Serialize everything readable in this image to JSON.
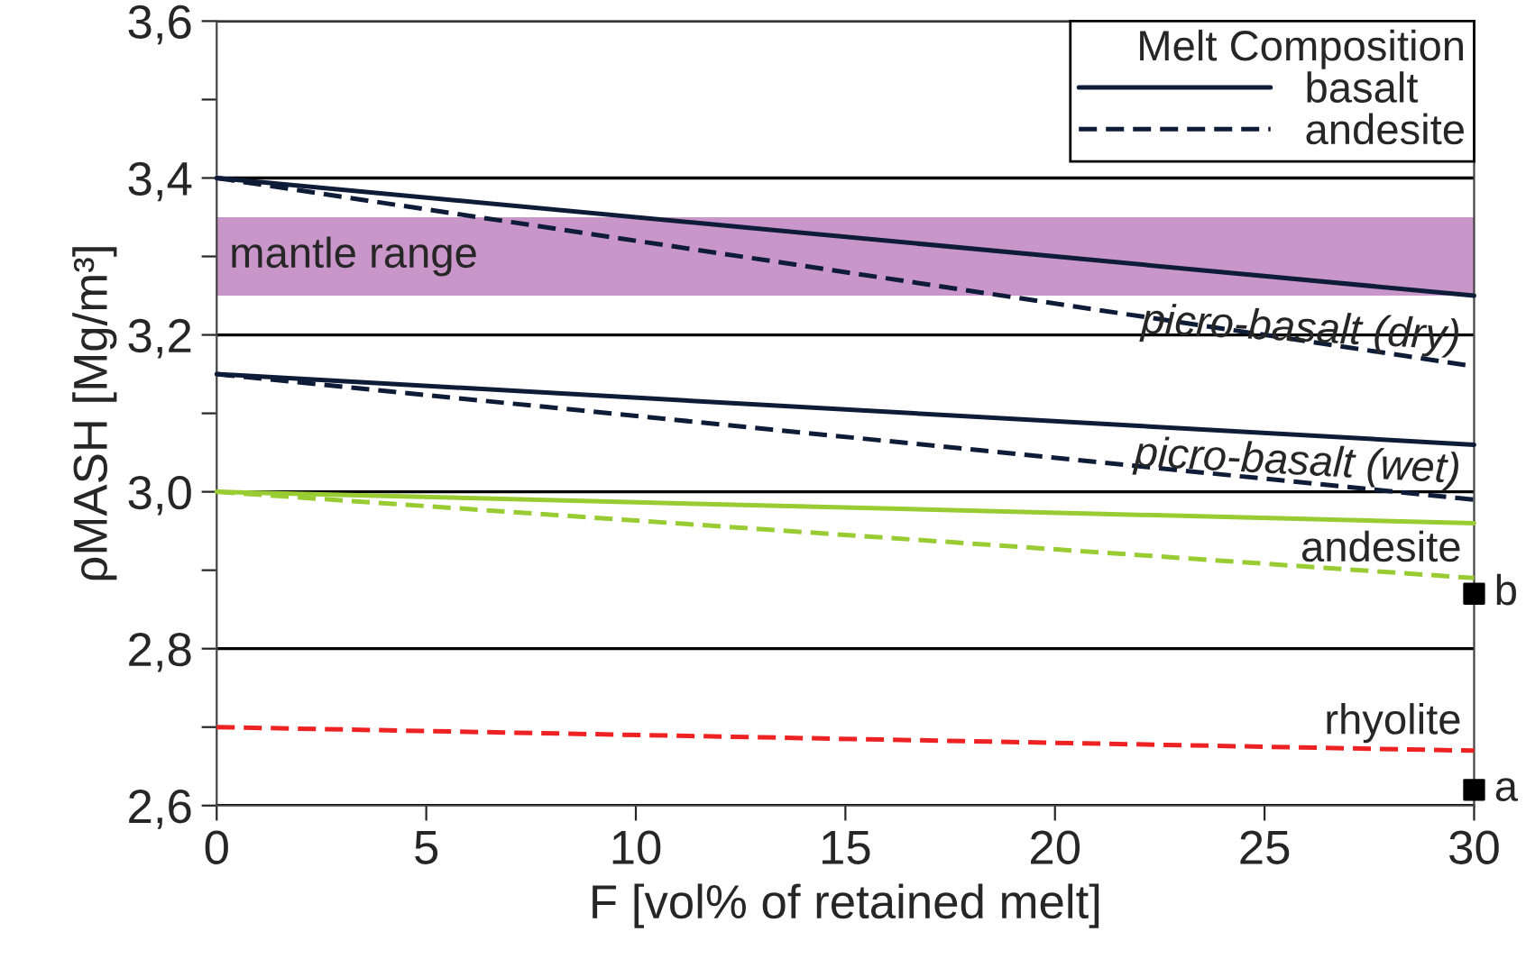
{
  "chart_data": {
    "type": "line",
    "xlabel": "F [vol% of retained melt]",
    "ylabel": "ρMASH [Mg/m³]",
    "legend_title": "Melt Composition",
    "legend": "top right",
    "grid": "y",
    "xlim": [
      0,
      30
    ],
    "xticks": [
      0,
      5,
      10,
      15,
      20,
      25,
      30
    ],
    "ylim": [
      2.6,
      3.6
    ],
    "yticks": [
      {
        "value": 2.6,
        "label": "2,6"
      },
      {
        "value": 2.7,
        "label": null
      },
      {
        "value": 2.8,
        "label": "2,8"
      },
      {
        "value": 2.9,
        "label": null
      },
      {
        "value": 3.0,
        "label": "3,0"
      },
      {
        "value": 3.1,
        "label": null
      },
      {
        "value": 3.2,
        "label": "3,2"
      },
      {
        "value": 3.3,
        "label": null
      },
      {
        "value": 3.4,
        "label": "3,4"
      },
      {
        "value": 3.5,
        "label": null
      },
      {
        "value": 3.6,
        "label": "3,6"
      }
    ],
    "bands": [
      {
        "axis": "y",
        "from": 3.25,
        "to": 3.35,
        "label": "mantle range",
        "color": "#c896c8"
      }
    ],
    "x": [
      0,
      30
    ],
    "series": [
      {
        "name": "basalt",
        "color": "#0f1c38",
        "line_style": "solid",
        "values": [
          3.4,
          3.25
        ]
      },
      {
        "name": "andesite",
        "color": "#0f1c38",
        "line_style": "dashed",
        "values": [
          3.4,
          3.16
        ]
      },
      {
        "color": "#0f1c38",
        "line_style": "solid",
        "values": [
          3.15,
          3.06
        ]
      },
      {
        "color": "#0f1c38",
        "line_style": "dashed",
        "values": [
          3.15,
          2.99
        ]
      },
      {
        "color": "#99cc33",
        "line_style": "solid",
        "values": [
          3.0,
          2.96
        ]
      },
      {
        "color": "#99cc33",
        "line_style": "dashed",
        "values": [
          3.0,
          2.89
        ]
      },
      {
        "color": "#ee2222",
        "line_style": "dashed",
        "values": [
          2.7,
          2.67
        ]
      },
      {
        "type": "scatter",
        "name": "b",
        "color": "#000000",
        "marker": "square",
        "x": [
          30
        ],
        "values": [
          2.87
        ]
      },
      {
        "type": "scatter",
        "name": "a",
        "color": "#000000",
        "marker": "square",
        "x": [
          30
        ],
        "values": [
          2.62
        ]
      }
    ],
    "annotations": [
      "picro-basalt (dry)",
      "picro-basalt (wet)",
      "andesite",
      "rhyolite"
    ]
  }
}
